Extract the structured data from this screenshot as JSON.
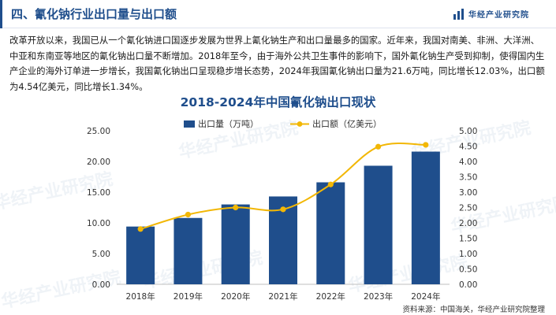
{
  "header": {
    "title": "四、氰化钠行业出口量与出口额",
    "logo_text": "华经产业研究院",
    "accent_color": "#1f4e8c"
  },
  "intro": "改革开放以来，我国已从一个氰化钠进口国逐步发展为世界上氰化钠生产和出口量最多的国家。近年来，我国对南美、非洲、大洋洲、中亚和东南亚等地区的氰化钠出口量不断增加。2018年至今，由于海外公共卫生事件的影响下，国外氰化钠生产受到抑制，使得国内生产企业的海外订单进一步增长，我国氰化钠出口呈现稳步增长态势，2024年我国氰化钠出口量为21.6万吨，同比增长12.03%，出口额为4.54亿美元，同比增长1.34%。",
  "watermark": "华经产业研究院",
  "source": "资料来源：中国海关，华经产业研究院整理",
  "chart_data": {
    "type": "bar",
    "title": "2018-2024年中国氰化钠出口现状",
    "categories": [
      "2018年",
      "2019年",
      "2020年",
      "2021年",
      "2022年",
      "2023年",
      "2024年"
    ],
    "series": [
      {
        "name": "出口量（万吨）",
        "type": "bar",
        "axis": "left",
        "color": "#1f4e8c",
        "values": [
          9.4,
          10.8,
          13.0,
          14.3,
          16.6,
          19.3,
          21.6
        ]
      },
      {
        "name": "出口额（亿美元）",
        "type": "line",
        "axis": "right",
        "color": "#f2b705",
        "values": [
          1.8,
          2.27,
          2.5,
          2.44,
          3.25,
          4.48,
          4.54
        ]
      }
    ],
    "y_left": {
      "range": [
        0,
        25
      ],
      "ticks": [
        "0.00",
        "5.00",
        "10.00",
        "15.00",
        "20.00",
        "25.00"
      ]
    },
    "y_right": {
      "range": [
        0,
        5
      ],
      "ticks": [
        "0.00",
        "0.50",
        "1.00",
        "1.50",
        "2.00",
        "2.50",
        "3.00",
        "3.50",
        "4.00",
        "4.50",
        "5.00"
      ]
    },
    "grid": false,
    "legend_position": "top"
  }
}
